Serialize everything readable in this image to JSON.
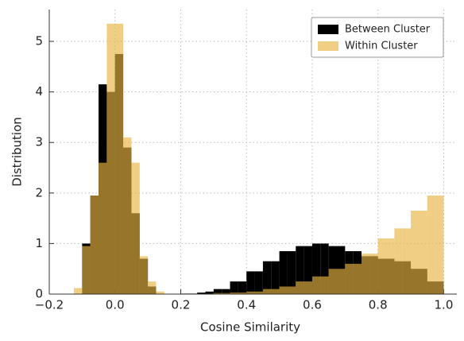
{
  "chart_data": {
    "type": "histogram",
    "xlabel": "Cosine Similarity",
    "ylabel": "Distribution",
    "bins": [
      -0.15,
      -0.125,
      -0.1,
      -0.075,
      -0.05,
      -0.025,
      0,
      0.025,
      0.05,
      0.075,
      0.1,
      0.125,
      0.15,
      0.175,
      0.2,
      0.225,
      0.25,
      0.275,
      0.3,
      0.325,
      0.35,
      0.375,
      0.4,
      0.425,
      0.45,
      0.475,
      0.5,
      0.525,
      0.55,
      0.575,
      0.6,
      0.625,
      0.65,
      0.675,
      0.7,
      0.725,
      0.75,
      0.775,
      0.8,
      0.825,
      0.85,
      0.875,
      0.9,
      0.925,
      0.95,
      0.975,
      1.0
    ],
    "series": [
      {
        "name": "Between Cluster",
        "color": "#000000",
        "alpha": 1,
        "values": [
          0,
          0,
          1.0,
          1.95,
          4.15,
          4.0,
          4.75,
          2.9,
          1.6,
          0.7,
          0.15,
          0,
          0,
          0,
          0.01,
          0.01,
          0.03,
          0.05,
          0.1,
          0.1,
          0.25,
          0.25,
          0.45,
          0.45,
          0.65,
          0.65,
          0.85,
          0.85,
          0.95,
          0.95,
          1.0,
          1.0,
          0.95,
          0.95,
          0.85,
          0.85,
          0.75,
          0.75,
          0.7,
          0.7,
          0.65,
          0.65,
          0.5,
          0.5,
          0.25,
          0.25
        ]
      },
      {
        "name": "Within Cluster",
        "color": "#e8b440",
        "alpha": 0.65,
        "values": [
          0,
          0.12,
          0.95,
          1.95,
          2.6,
          5.35,
          5.35,
          3.1,
          2.6,
          0.75,
          0.25,
          0.05,
          0,
          0,
          0,
          0,
          0,
          0,
          0.02,
          0.02,
          0.03,
          0.03,
          0.05,
          0.05,
          0.1,
          0.1,
          0.15,
          0.15,
          0.25,
          0.25,
          0.35,
          0.35,
          0.5,
          0.5,
          0.6,
          0.6,
          0.8,
          0.8,
          1.1,
          1.1,
          1.3,
          1.3,
          1.65,
          1.65,
          1.95,
          1.95
        ]
      }
    ],
    "xlim": [
      -0.2,
      1.04
    ],
    "ylim": [
      0,
      5.63
    ],
    "xticks": [
      {
        "value": -0.2,
        "label": "−0.2"
      },
      {
        "value": 0,
        "label": "0.0"
      },
      0.2,
      0.4,
      0.6,
      0.8,
      {
        "value": 1,
        "label": "1.0"
      }
    ],
    "yticks": [
      0,
      1,
      2,
      3,
      4,
      5
    ],
    "grid": true,
    "legend": "upper right"
  }
}
